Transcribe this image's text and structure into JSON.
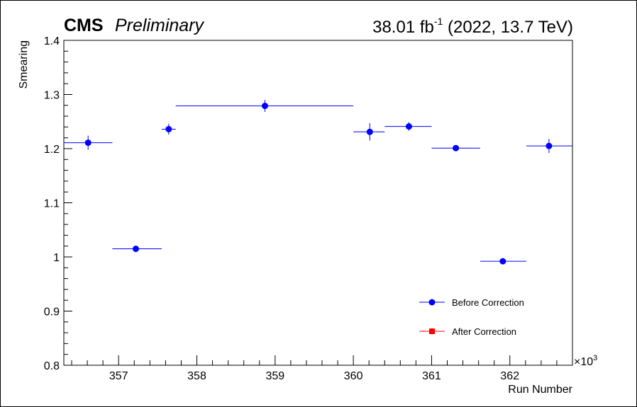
{
  "header": {
    "experiment": "CMS",
    "status": "Preliminary",
    "lumi_value": "38.01 fb",
    "lumi_exponent": "-1",
    "run_info": " (2022, 13.7 TeV)"
  },
  "colors": {
    "before": "#0000ff",
    "after": "#ff0000",
    "frame": "#000000"
  },
  "chart_data": {
    "type": "scatter",
    "title": "",
    "xlabel": "Run Number",
    "ylabel": "Smearing",
    "x_multiplier_label": "×10",
    "x_multiplier_exponent": "3",
    "xlim": [
      356.3,
      362.8
    ],
    "ylim": [
      0.8,
      1.4
    ],
    "xticks": [
      357,
      358,
      359,
      360,
      361,
      362
    ],
    "xtick_labels": [
      "357",
      "358",
      "359",
      "360",
      "361",
      "362"
    ],
    "yticks": [
      0.8,
      0.9,
      1.0,
      1.1,
      1.2,
      1.3,
      1.4
    ],
    "ytick_labels": [
      "0.8",
      "0.9",
      "1",
      "1.1",
      "1.2",
      "1.3",
      "1.4"
    ],
    "grid": false,
    "legend_position": "bottom-right",
    "series": [
      {
        "name": "Before Correction",
        "marker": "circle",
        "color": "#0000ff",
        "points": [
          {
            "x": 356.61,
            "xlo": 356.3,
            "xhi": 356.92,
            "y": 1.211,
            "yerr": 0.013
          },
          {
            "x": 357.22,
            "xlo": 356.92,
            "xhi": 357.55,
            "y": 1.015,
            "yerr": 0.006
          },
          {
            "x": 357.64,
            "xlo": 357.55,
            "xhi": 357.73,
            "y": 1.236,
            "yerr": 0.01
          },
          {
            "x": 358.87,
            "xlo": 357.73,
            "xhi": 360.0,
            "y": 1.279,
            "yerr": 0.011
          },
          {
            "x": 360.21,
            "xlo": 360.0,
            "xhi": 360.4,
            "y": 1.231,
            "yerr": 0.016
          },
          {
            "x": 360.71,
            "xlo": 360.4,
            "xhi": 361.0,
            "y": 1.241,
            "yerr": 0.008
          },
          {
            "x": 361.31,
            "xlo": 361.0,
            "xhi": 361.62,
            "y": 1.201,
            "yerr": 0.004
          },
          {
            "x": 361.91,
            "xlo": 361.62,
            "xhi": 362.21,
            "y": 0.992,
            "yerr": 0.004
          },
          {
            "x": 362.5,
            "xlo": 362.21,
            "xhi": 362.8,
            "y": 1.205,
            "yerr": 0.013
          }
        ]
      },
      {
        "name": "After Correction",
        "marker": "square",
        "color": "#ff0000",
        "points": []
      }
    ]
  }
}
